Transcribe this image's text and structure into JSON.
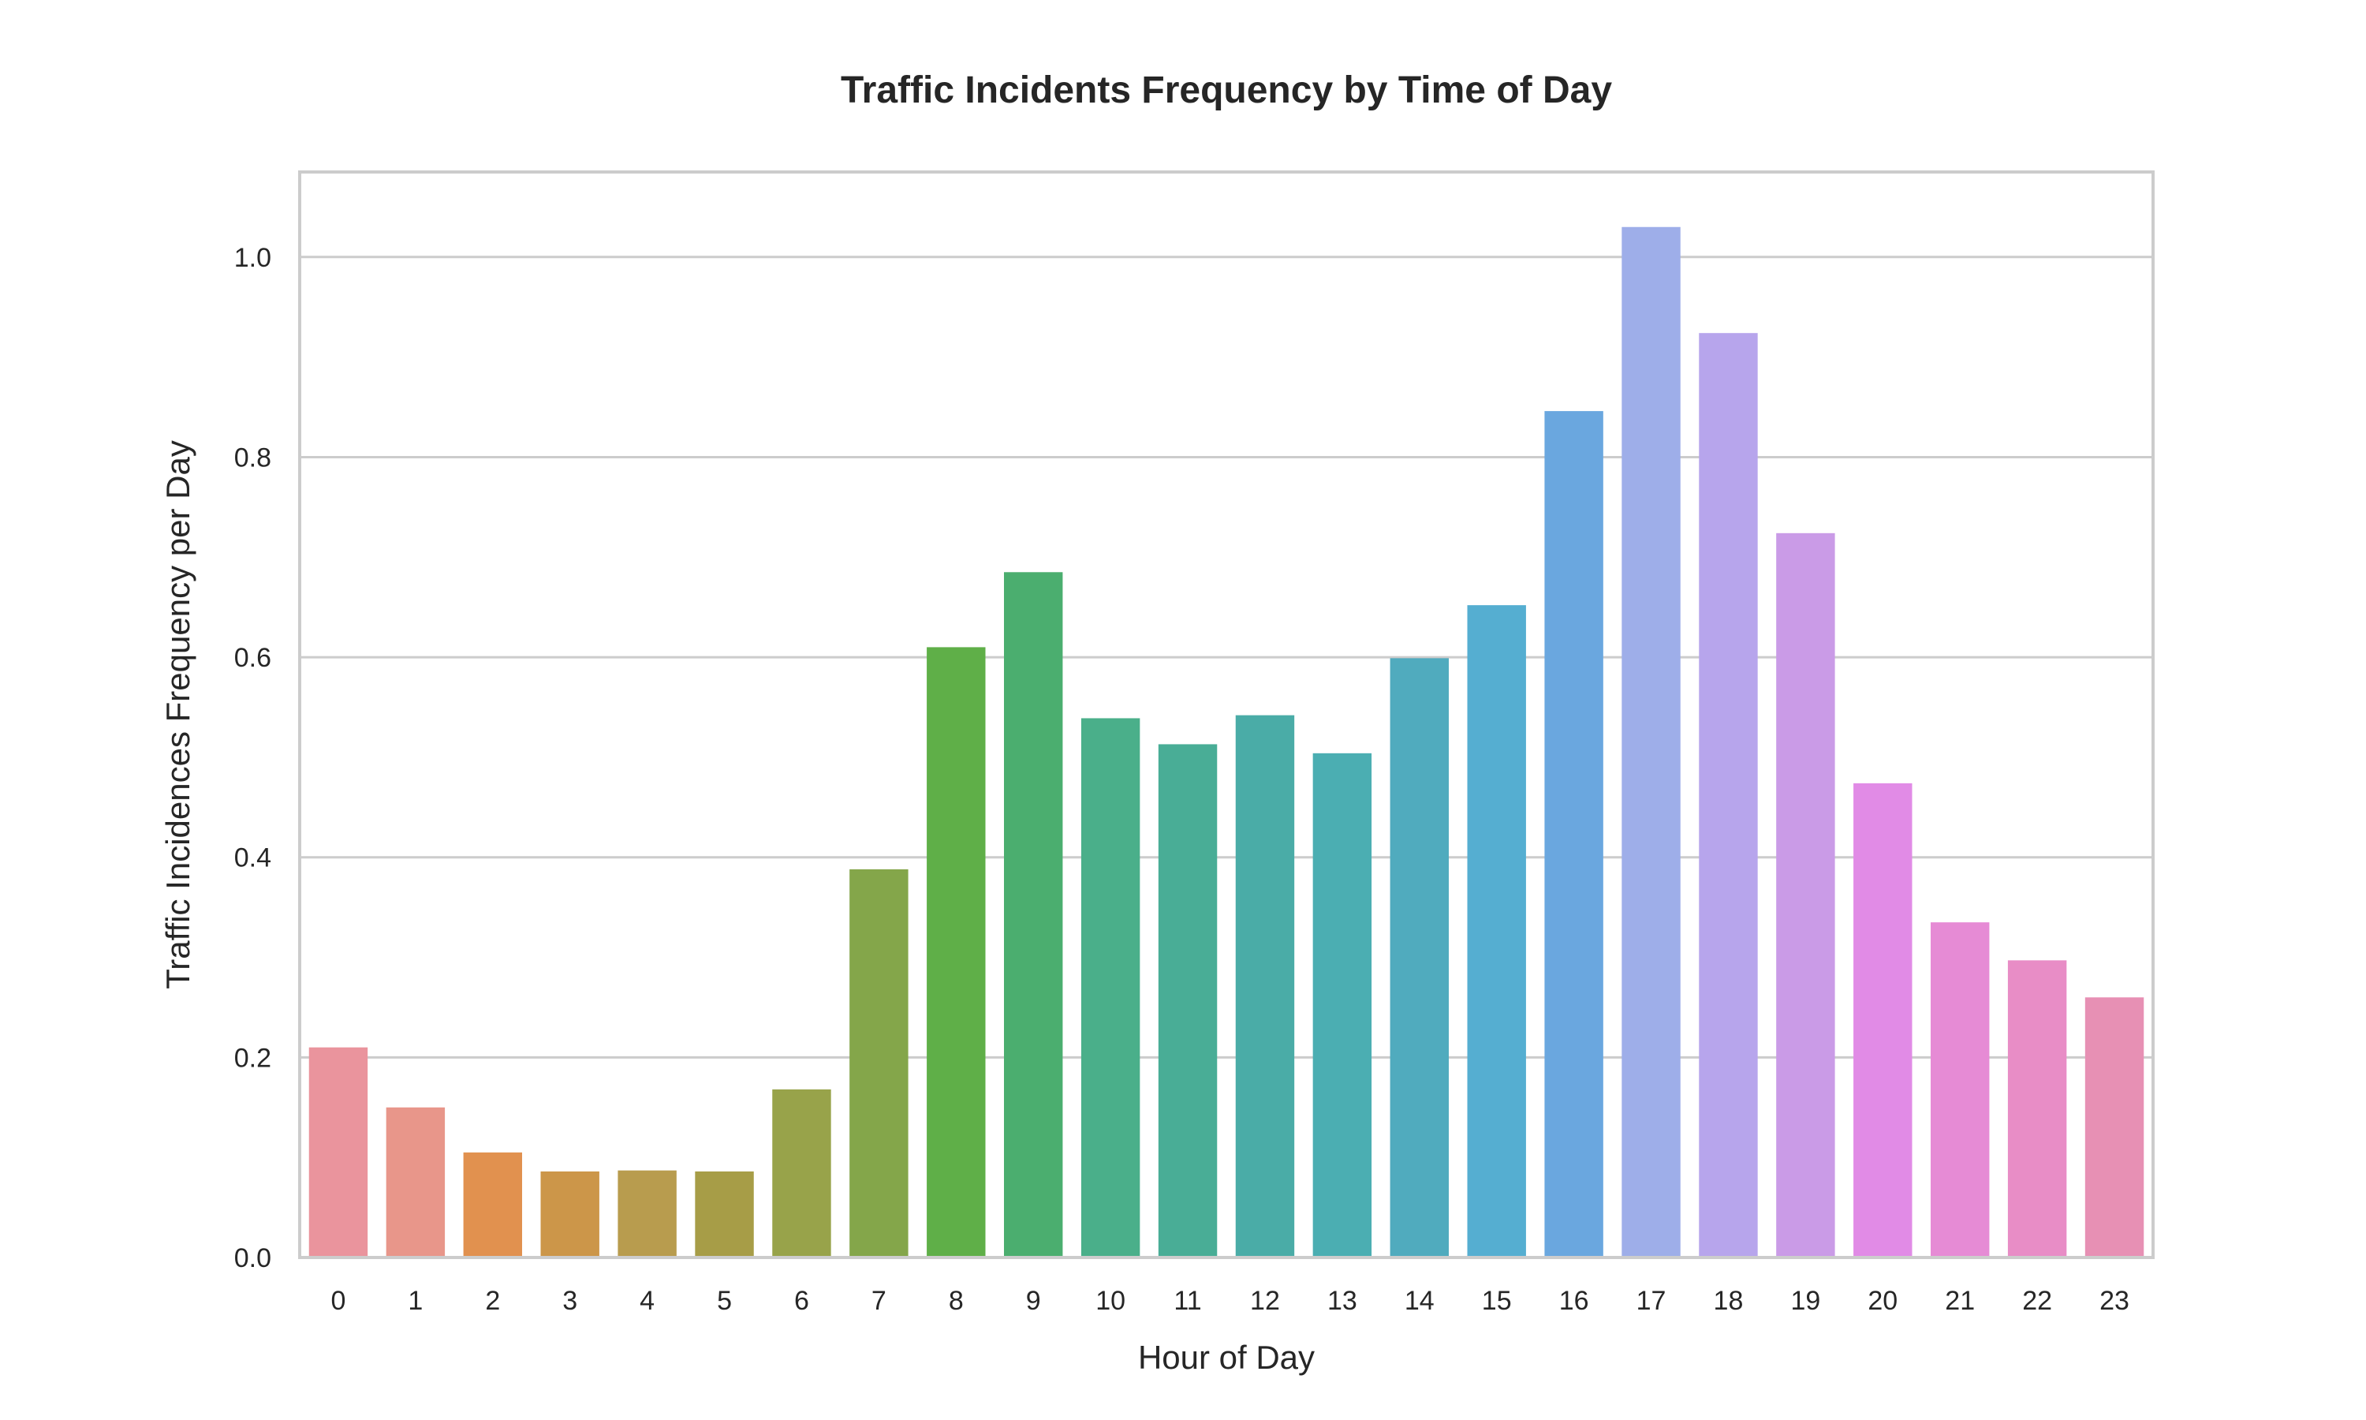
{
  "chart_data": {
    "type": "bar",
    "title": "Traffic Incidents Frequency by Time of Day",
    "xlabel": "Hour of Day",
    "ylabel": "Traffic Incidences Frequency per Day",
    "categories": [
      "0",
      "1",
      "2",
      "3",
      "4",
      "5",
      "6",
      "7",
      "8",
      "9",
      "10",
      "11",
      "12",
      "13",
      "14",
      "15",
      "16",
      "17",
      "18",
      "19",
      "20",
      "21",
      "22",
      "23"
    ],
    "values": [
      0.21,
      0.15,
      0.105,
      0.086,
      0.087,
      0.086,
      0.168,
      0.388,
      0.61,
      0.685,
      0.539,
      0.513,
      0.542,
      0.504,
      0.599,
      0.652,
      0.846,
      1.03,
      0.924,
      0.724,
      0.474,
      0.335,
      0.297,
      0.26
    ],
    "colors": [
      "#ea949d",
      "#e8968a",
      "#e1914f",
      "#cc9649",
      "#b89c4e",
      "#a79d47",
      "#98a34a",
      "#84a64a",
      "#5faf48",
      "#4bae6f",
      "#4aaf8a",
      "#49ad96",
      "#4aaca7",
      "#4baeb2",
      "#50abbe",
      "#55aed1",
      "#6aa7df",
      "#9eaee9",
      "#b7a5ec",
      "#ca9be7",
      "#e18be6",
      "#e68bd5",
      "#e88dc6",
      "#e790b4"
    ],
    "ylim": [
      0,
      1.085
    ],
    "yticks": [
      0.0,
      0.2,
      0.4,
      0.6,
      0.8,
      1.0
    ],
    "ytick_labels": [
      "0.0",
      "0.2",
      "0.4",
      "0.6",
      "0.8",
      "1.0"
    ],
    "grid": true,
    "legend": "none"
  }
}
